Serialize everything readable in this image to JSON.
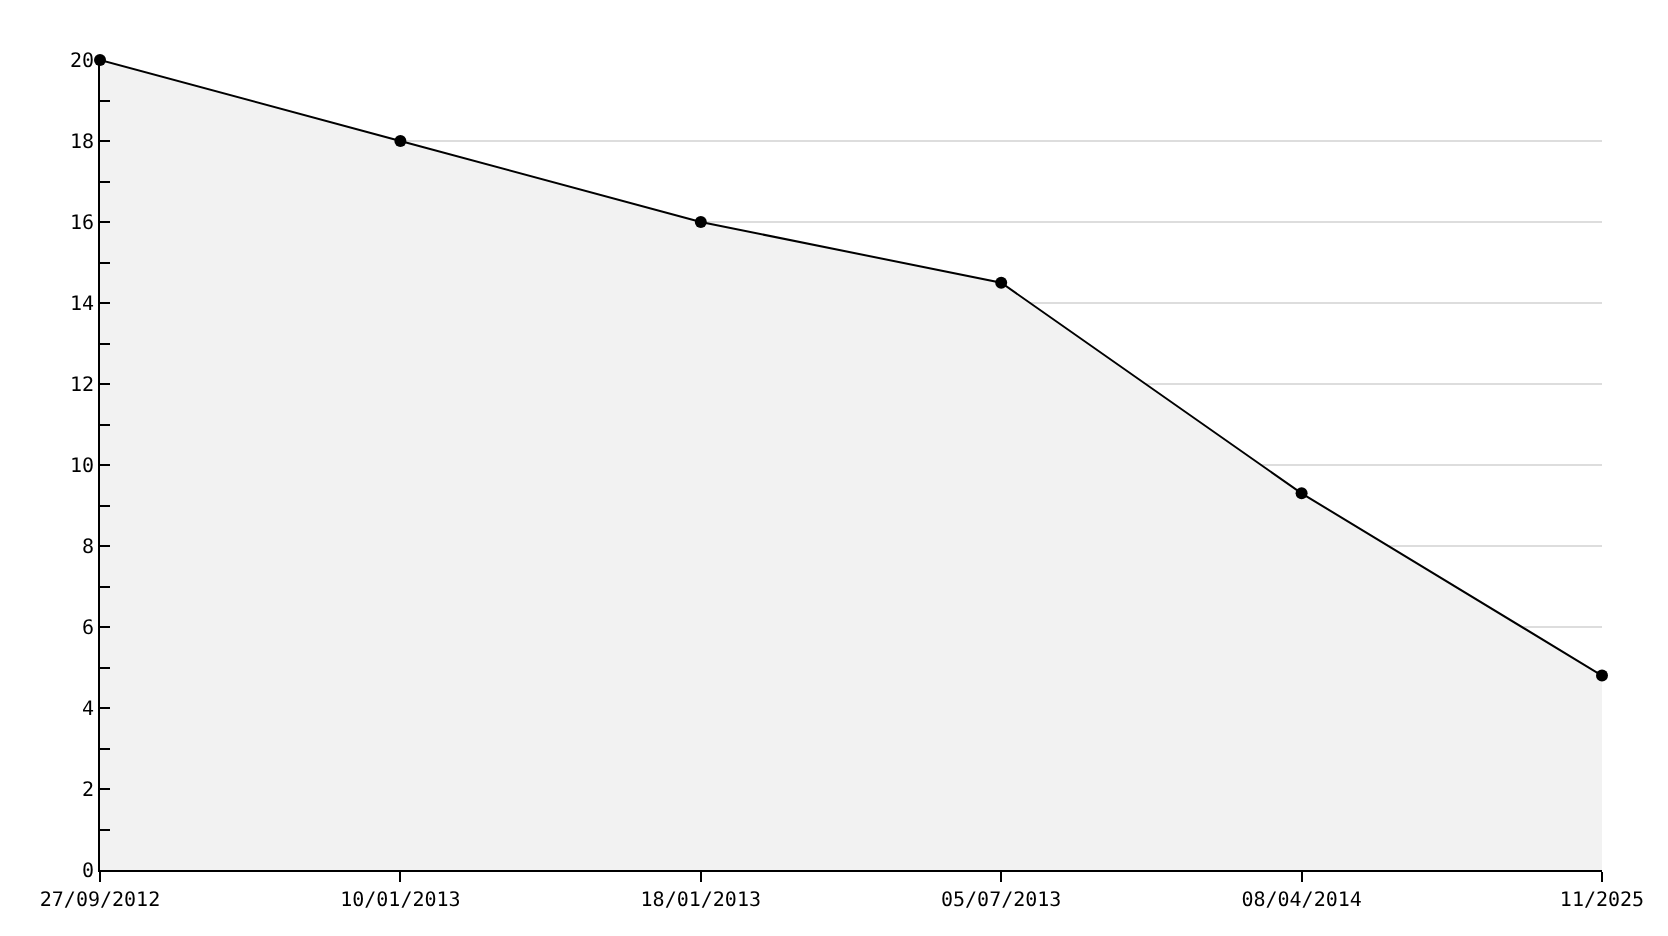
{
  "chart_data": {
    "type": "area",
    "categories": [
      "27/09/2012",
      "10/01/2013",
      "18/01/2013",
      "05/07/2013",
      "08/04/2014",
      "11/2025"
    ],
    "series": [
      {
        "color": "#000000",
        "values": [
          20,
          18,
          16,
          14.5,
          9.3,
          4.8
        ]
      }
    ],
    "ylim": [
      0,
      20
    ],
    "yticks": [
      0,
      2,
      4,
      6,
      8,
      10,
      12,
      14,
      16,
      18,
      20
    ],
    "grid": "y",
    "marker": "circle",
    "line_style": "solid"
  }
}
